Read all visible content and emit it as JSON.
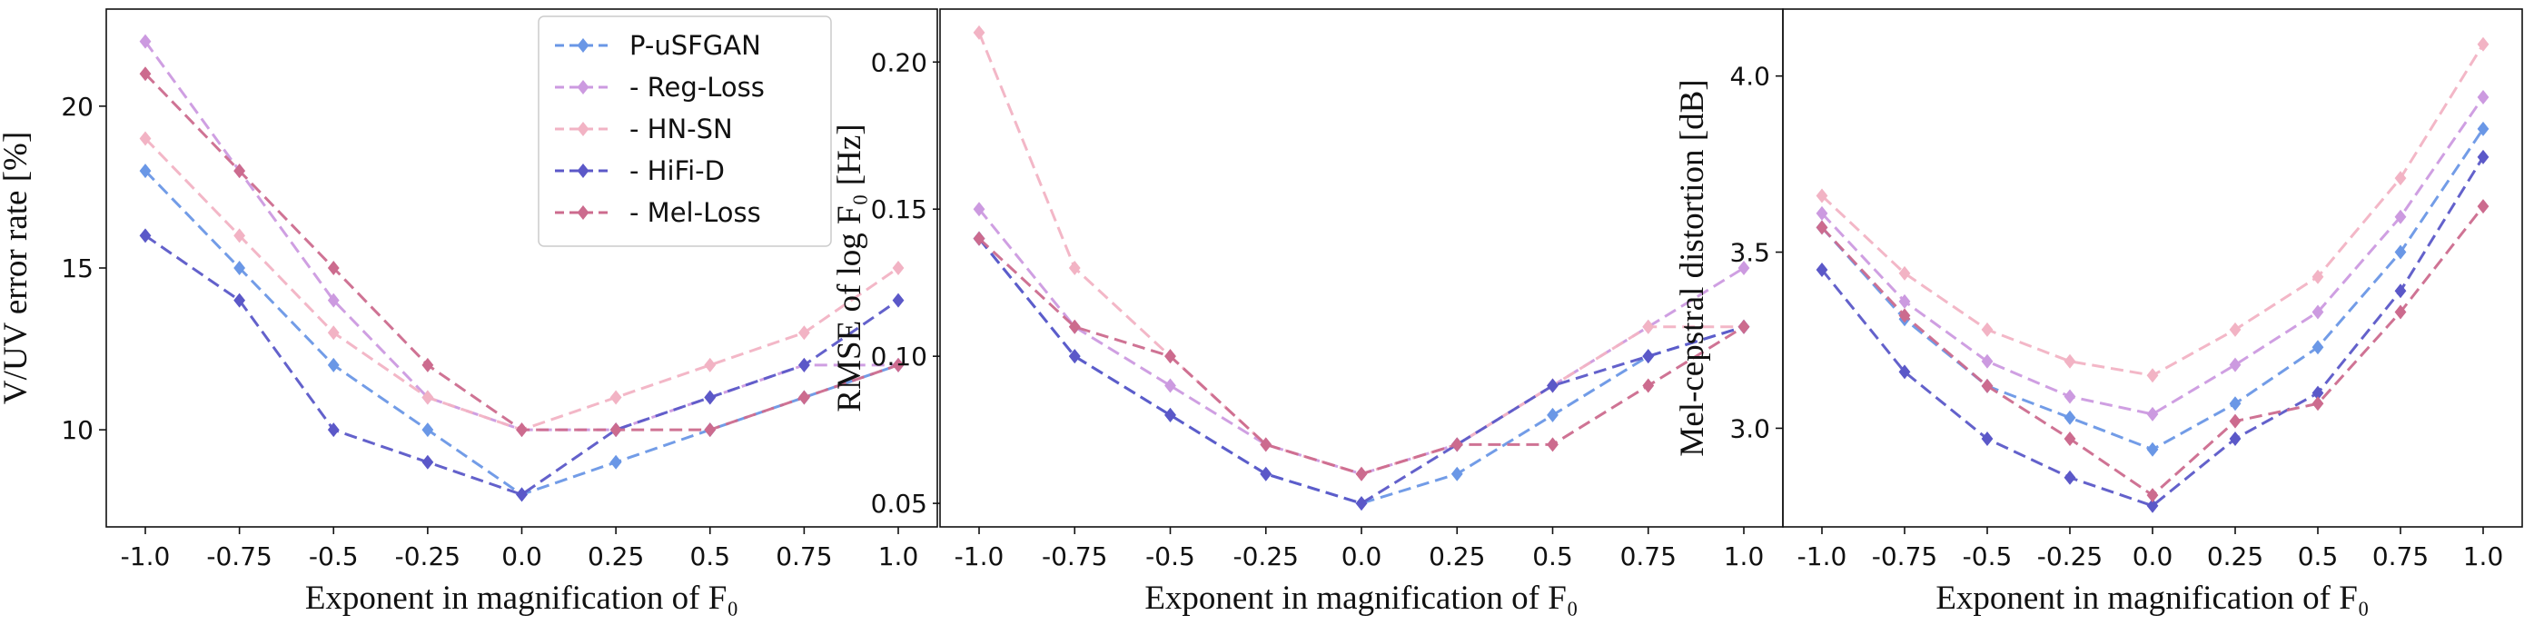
{
  "colors": {
    "P-uSFGAN": "#6a97e6",
    "- Reg-Loss": "#cc9ae0",
    "- HN-SN": "#f2b3c4",
    "- HiFi-D": "#5b58c8",
    "- Mel-Loss": "#cc6b8e"
  },
  "chart_data": [
    {
      "type": "line",
      "xlabel": "Exponent in magnification of F₀",
      "ylabel": "V/UV error rate [%]",
      "categories": [
        "-1.0",
        "-0.75",
        "-0.5",
        "-0.25",
        "0.0",
        "0.25",
        "0.5",
        "0.75",
        "1.0"
      ],
      "yticks": [
        10,
        15,
        20
      ],
      "ylim": [
        7.0,
        23.0
      ],
      "legend": "top-right",
      "series": [
        {
          "name": "P-uSFGAN",
          "values": [
            18,
            15,
            12,
            10,
            8,
            9,
            10,
            11,
            12
          ]
        },
        {
          "name": "- Reg-Loss",
          "values": [
            22,
            18,
            14,
            11,
            10,
            10,
            11,
            12,
            12
          ]
        },
        {
          "name": "- HN-SN",
          "values": [
            19,
            16,
            13,
            11,
            10,
            11,
            12,
            13,
            15
          ]
        },
        {
          "name": "- HiFi-D",
          "values": [
            16,
            14,
            10,
            9,
            8,
            10,
            11,
            12,
            14
          ]
        },
        {
          "name": "- Mel-Loss",
          "values": [
            21,
            18,
            15,
            12,
            10,
            10,
            10,
            11,
            12
          ]
        }
      ]
    },
    {
      "type": "line",
      "xlabel": "Exponent in magnification of F₀",
      "ylabel": "RMSE of  log F₀ [Hz]",
      "categories": [
        "-1.0",
        "-0.75",
        "-0.5",
        "-0.25",
        "0.0",
        "0.25",
        "0.5",
        "0.75",
        "1.0"
      ],
      "yticks": [
        "0.05",
        "0.10",
        "0.15",
        "0.20"
      ],
      "ylim": [
        0.042,
        0.218
      ],
      "series": [
        {
          "name": "P-uSFGAN",
          "values": [
            0.14,
            0.1,
            0.08,
            0.06,
            0.05,
            0.06,
            0.08,
            0.1,
            0.11
          ]
        },
        {
          "name": "- Reg-Loss",
          "values": [
            0.15,
            0.11,
            0.09,
            0.07,
            0.06,
            0.07,
            0.09,
            0.11,
            0.13
          ]
        },
        {
          "name": "- HN-SN",
          "values": [
            0.21,
            0.13,
            0.1,
            0.07,
            0.06,
            0.07,
            0.09,
            0.11,
            0.11
          ]
        },
        {
          "name": "- HiFi-D",
          "values": [
            0.14,
            0.1,
            0.08,
            0.06,
            0.05,
            0.07,
            0.09,
            0.1,
            0.11
          ]
        },
        {
          "name": "- Mel-Loss",
          "values": [
            0.14,
            0.11,
            0.1,
            0.07,
            0.06,
            0.07,
            0.07,
            0.09,
            0.11
          ]
        }
      ]
    },
    {
      "type": "line",
      "xlabel": "Exponent in magnification of F₀",
      "ylabel": "Mel-cepstral  distortion [dB]",
      "categories": [
        "-1.0",
        "-0.75",
        "-0.5",
        "-0.25",
        "0.0",
        "0.25",
        "0.5",
        "0.75",
        "1.0"
      ],
      "yticks": [
        "3.0",
        "3.5",
        "4.0"
      ],
      "ylim": [
        2.72,
        4.19
      ],
      "series": [
        {
          "name": "P-uSFGAN",
          "values": [
            3.57,
            3.31,
            3.12,
            3.03,
            2.94,
            3.07,
            3.23,
            3.5,
            3.85
          ]
        },
        {
          "name": "- Reg-Loss",
          "values": [
            3.61,
            3.36,
            3.19,
            3.09,
            3.04,
            3.18,
            3.33,
            3.6,
            3.94
          ]
        },
        {
          "name": "- HN-SN",
          "values": [
            3.66,
            3.44,
            3.28,
            3.19,
            3.15,
            3.28,
            3.43,
            3.71,
            4.09
          ]
        },
        {
          "name": "- HiFi-D",
          "values": [
            3.45,
            3.16,
            2.97,
            2.86,
            2.78,
            2.97,
            3.1,
            3.39,
            3.77
          ]
        },
        {
          "name": "- Mel-Loss",
          "values": [
            3.57,
            3.32,
            3.12,
            2.97,
            2.81,
            3.02,
            3.07,
            3.33,
            3.63
          ]
        }
      ]
    }
  ]
}
